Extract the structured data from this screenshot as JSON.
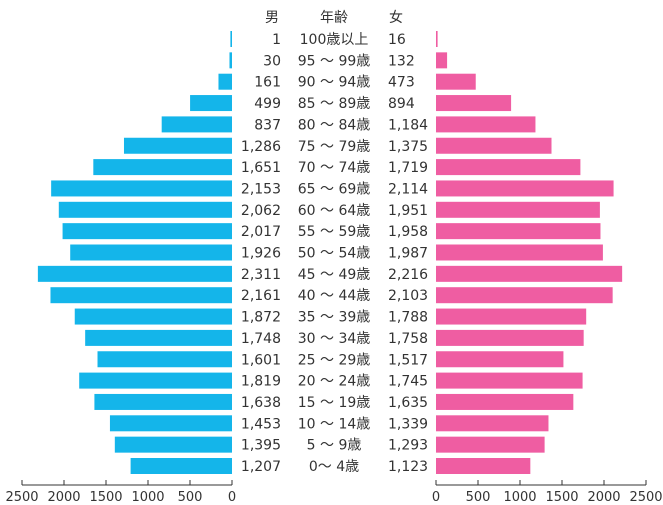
{
  "chart_data": {
    "type": "bar",
    "orientation": "horizontal",
    "layout": "population-pyramid",
    "headers": {
      "male": "男",
      "age": "年齢",
      "female": "女"
    },
    "categories": [
      "100歳以上",
      "95 ～ 99歳",
      "90 ～ 94歳",
      "85 ～ 89歳",
      "80 ～ 84歳",
      "75 ～ 79歳",
      "70 ～ 74歳",
      "65 ～ 69歳",
      "60 ～ 64歳",
      "55 ～ 59歳",
      "50 ～ 54歳",
      "45 ～ 49歳",
      "40 ～ 44歳",
      "35 ～ 39歳",
      "30 ～ 34歳",
      "25 ～ 29歳",
      "20 ～ 24歳",
      "15 ～ 19歳",
      "10 ～ 14歳",
      "5 ～ 9歳",
      "0～ 4歳"
    ],
    "series": [
      {
        "key": "male",
        "side": "left",
        "values": [
          1,
          30,
          161,
          499,
          837,
          1286,
          1651,
          2153,
          2062,
          2017,
          1926,
          2311,
          2161,
          1872,
          1748,
          1601,
          1819,
          1638,
          1453,
          1395,
          1207
        ],
        "labels": [
          "1",
          "30",
          "161",
          "499",
          "837",
          "1,286",
          "1,651",
          "2,153",
          "2,062",
          "2,017",
          "1,926",
          "2,311",
          "2,161",
          "1,872",
          "1,748",
          "1,601",
          "1,819",
          "1,638",
          "1,453",
          "1,395",
          "1,207"
        ]
      },
      {
        "key": "female",
        "side": "right",
        "values": [
          16,
          132,
          473,
          894,
          1184,
          1375,
          1719,
          2114,
          1951,
          1958,
          1987,
          2216,
          2103,
          1788,
          1758,
          1517,
          1745,
          1635,
          1339,
          1293,
          1123
        ],
        "labels": [
          "16",
          "132",
          "473",
          "894",
          "1,184",
          "1,375",
          "1,719",
          "2,114",
          "1,951",
          "1,958",
          "1,987",
          "2,216",
          "2,103",
          "1,788",
          "1,758",
          "1,517",
          "1,745",
          "1,635",
          "1,339",
          "1,293",
          "1,123"
        ]
      }
    ],
    "xlim": [
      0,
      2500
    ],
    "xticks": [
      0,
      500,
      1000,
      1500,
      2000,
      2500
    ],
    "xtick_labels": [
      "0",
      "500",
      "1000",
      "1500",
      "2000",
      "2500"
    ],
    "colors": {
      "male": "#14b5ea",
      "female": "#ef5da2",
      "axis": "#333333"
    },
    "grid": false,
    "legend": "none"
  }
}
